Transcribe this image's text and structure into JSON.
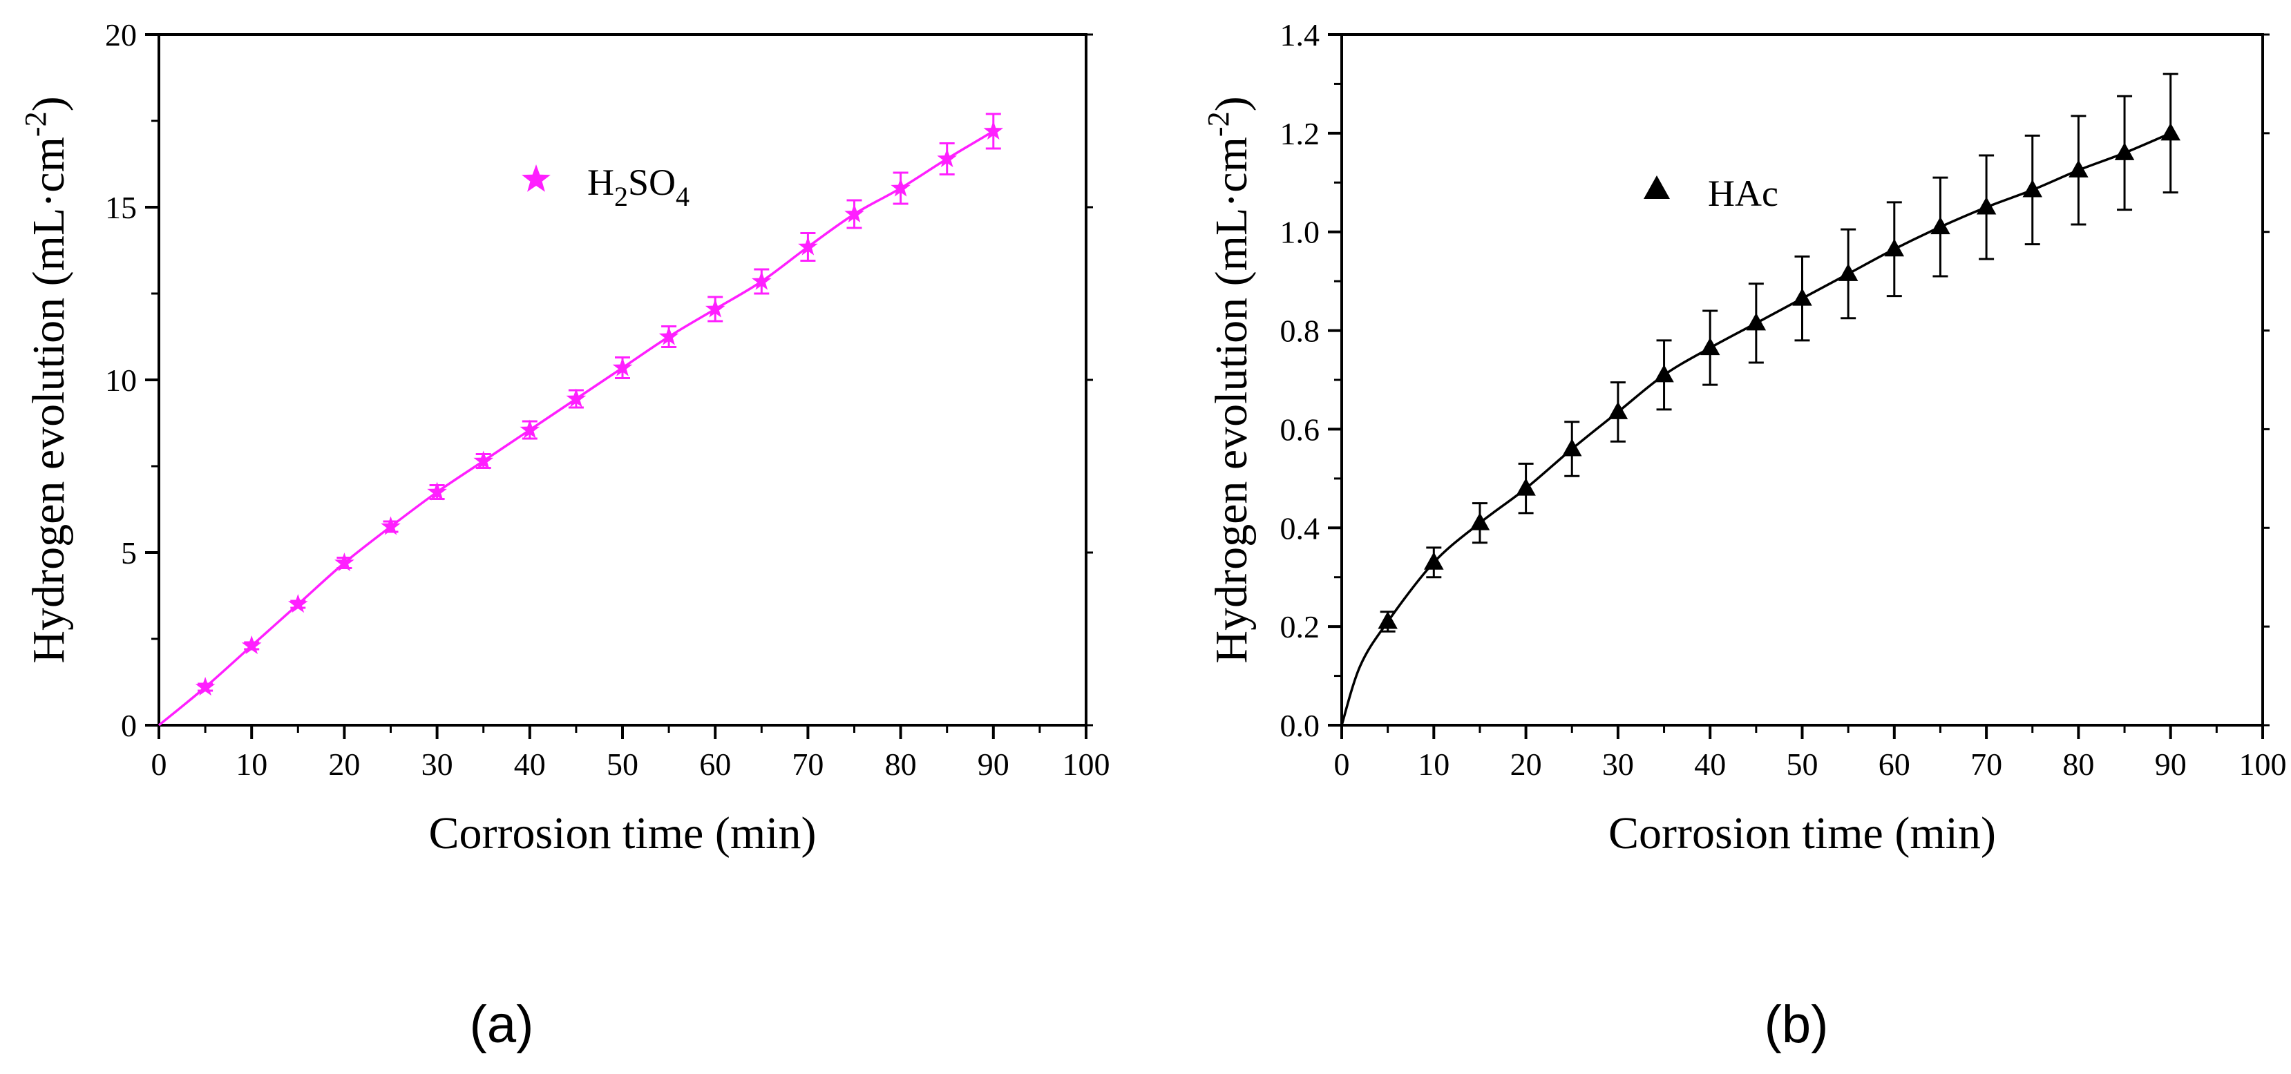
{
  "chart_data": [
    {
      "type": "line",
      "panel_label": "(a)",
      "xlabel": "Corrosion time (min)",
      "ylabel": {
        "main": "Hydrogen evolution (mL·cm",
        "sup": "-2",
        "close": ")"
      },
      "xlim": [
        0,
        100
      ],
      "ylim": [
        0,
        20
      ],
      "xticks": [
        "0",
        "10",
        "20",
        "30",
        "40",
        "50",
        "60",
        "70",
        "80",
        "90",
        "100"
      ],
      "yticks": [
        "0",
        "5",
        "10",
        "15",
        "20"
      ],
      "color": "#ff1fff",
      "marker": "star",
      "legend": {
        "position": "top-center",
        "parts": [
          "H",
          "2",
          "SO",
          "4"
        ]
      },
      "series": [
        {
          "name": "H2SO4",
          "x": [
            5,
            10,
            15,
            20,
            25,
            30,
            35,
            40,
            45,
            50,
            55,
            60,
            65,
            70,
            75,
            80,
            85,
            90
          ],
          "y": [
            1.1,
            2.3,
            3.5,
            4.7,
            5.75,
            6.75,
            7.65,
            8.55,
            9.45,
            10.35,
            11.25,
            12.05,
            12.85,
            13.85,
            14.8,
            15.55,
            16.4,
            17.2
          ],
          "err": [
            0.1,
            0.1,
            0.1,
            0.15,
            0.15,
            0.2,
            0.2,
            0.25,
            0.25,
            0.3,
            0.3,
            0.35,
            0.35,
            0.4,
            0.4,
            0.45,
            0.45,
            0.5
          ]
        }
      ],
      "curve": {
        "x": [
          0,
          5,
          10,
          15,
          20,
          25,
          30,
          35,
          40,
          45,
          50,
          55,
          60,
          65,
          70,
          75,
          80,
          85,
          90
        ],
        "y": [
          0,
          1.1,
          2.3,
          3.5,
          4.7,
          5.75,
          6.75,
          7.65,
          8.55,
          9.45,
          10.35,
          11.25,
          12.05,
          12.85,
          13.85,
          14.8,
          15.55,
          16.4,
          17.2
        ]
      }
    },
    {
      "type": "line",
      "panel_label": "(b)",
      "xlabel": "Corrosion time (min)",
      "ylabel": {
        "main": "Hydrogen evolution (mL·cm",
        "sup": "-2",
        "close": ")"
      },
      "xlim": [
        0,
        100
      ],
      "ylim": [
        0,
        1.4
      ],
      "xticks": [
        "0",
        "10",
        "20",
        "30",
        "40",
        "50",
        "60",
        "70",
        "80",
        "90",
        "100"
      ],
      "yticks": [
        "0.0",
        "0.2",
        "0.4",
        "0.6",
        "0.8",
        "1.0",
        "1.2",
        "1.4"
      ],
      "color": "#000000",
      "marker": "triangle",
      "legend": {
        "position": "top-center",
        "parts": [
          "HAc"
        ]
      },
      "series": [
        {
          "name": "HAc",
          "x": [
            5,
            10,
            15,
            20,
            25,
            30,
            35,
            40,
            45,
            50,
            55,
            60,
            65,
            70,
            75,
            80,
            85,
            90
          ],
          "y": [
            0.21,
            0.33,
            0.41,
            0.48,
            0.56,
            0.635,
            0.71,
            0.765,
            0.815,
            0.865,
            0.915,
            0.965,
            1.01,
            1.05,
            1.085,
            1.125,
            1.16,
            1.2
          ],
          "err": [
            0.02,
            0.03,
            0.04,
            0.05,
            0.055,
            0.06,
            0.07,
            0.075,
            0.08,
            0.085,
            0.09,
            0.095,
            0.1,
            0.105,
            0.11,
            0.11,
            0.115,
            0.12
          ]
        }
      ],
      "curve": {
        "x": [
          0,
          2,
          5,
          10,
          15,
          20,
          25,
          30,
          35,
          40,
          45,
          50,
          55,
          60,
          65,
          70,
          75,
          80,
          85,
          90
        ],
        "y": [
          0,
          0.12,
          0.21,
          0.33,
          0.41,
          0.48,
          0.56,
          0.635,
          0.71,
          0.765,
          0.815,
          0.865,
          0.915,
          0.965,
          1.01,
          1.05,
          1.085,
          1.125,
          1.16,
          1.2
        ]
      }
    }
  ]
}
